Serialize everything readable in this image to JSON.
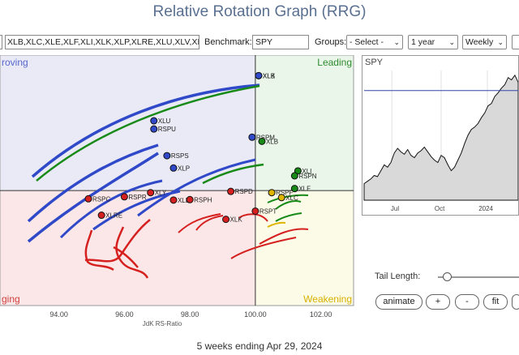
{
  "title": "Relative Rotation Graph (RRG)",
  "toolbar": {
    "symbols_value": "XLB,XLC,XLE,XLF,XLI,XLK,XLP,XLRE,XLU,XLV,XL",
    "benchmark_label": "Benchmark:",
    "benchmark_value": "SPY",
    "groups_label": "Groups:",
    "groups_value": "- Select -",
    "period_value": "1 year",
    "frequency_value": "Weekly"
  },
  "quadrants": {
    "improving": "roving",
    "leading": "Leading",
    "lagging": "ging",
    "weakening": "Weakening"
  },
  "x_axis_title": "JdK RS-Ratio",
  "chart_data": {
    "type": "scatter",
    "xlabel": "JdK RS-Ratio",
    "ylabel": "",
    "xlim": [
      92.2,
      103.0
    ],
    "ylim": [
      97.2,
      103.3
    ],
    "x_ticks": [
      "94.00",
      "96.00",
      "98.00",
      "100.00",
      "102.00"
    ],
    "x_tick_values": [
      94,
      96,
      98,
      100,
      102
    ],
    "center": [
      100,
      100
    ],
    "series": [
      {
        "name": "XLB",
        "color": "#2f49c9",
        "x": [
          100.1
        ],
        "y": [
          102.8
        ]
      },
      {
        "name": "XLK",
        "color": "#2f49c9",
        "x": [
          100.1
        ],
        "y": [
          102.8
        ]
      },
      {
        "name": "XLU",
        "color": "#2f49c9",
        "x": [
          96.9
        ],
        "y": [
          101.7
        ]
      },
      {
        "name": "RSPU",
        "color": "#2f49c9",
        "x": [
          96.9
        ],
        "y": [
          101.5
        ]
      },
      {
        "name": "RSPS",
        "color": "#2f49c9",
        "x": [
          97.3
        ],
        "y": [
          100.85
        ]
      },
      {
        "name": "XLP",
        "color": "#2f49c9",
        "x": [
          97.5
        ],
        "y": [
          100.55
        ]
      },
      {
        "name": "RSPM",
        "color": "#2f49c9",
        "x": [
          99.9
        ],
        "y": [
          101.3
        ]
      },
      {
        "name": "XLB",
        "color": "#178a17",
        "x": [
          100.2
        ],
        "y": [
          101.2
        ]
      },
      {
        "name": "XLI",
        "color": "#178a17",
        "x": [
          101.3
        ],
        "y": [
          100.48
        ]
      },
      {
        "name": "RSPN",
        "color": "#178a17",
        "x": [
          101.2
        ],
        "y": [
          100.36
        ]
      },
      {
        "name": "XLF",
        "color": "#178a17",
        "x": [
          101.2
        ],
        "y": [
          100.05
        ]
      },
      {
        "name": "RSPF",
        "color": "#e0b500",
        "x": [
          100.5
        ],
        "y": [
          99.95
        ]
      },
      {
        "name": "XLC",
        "color": "#e0b500",
        "x": [
          100.8
        ],
        "y": [
          99.83
        ]
      },
      {
        "name": "RSPD",
        "color": "#d62020",
        "x": [
          99.25
        ],
        "y": [
          99.98
        ]
      },
      {
        "name": "RSPT",
        "color": "#d62020",
        "x": [
          100.0
        ],
        "y": [
          99.5
        ]
      },
      {
        "name": "XLK",
        "color": "#d62020",
        "x": [
          99.1
        ],
        "y": [
          99.3
        ]
      },
      {
        "name": "XLY",
        "color": "#d62020",
        "x": [
          96.8
        ],
        "y": [
          99.95
        ]
      },
      {
        "name": "RSPR",
        "color": "#d62020",
        "x": [
          96.0
        ],
        "y": [
          99.85
        ]
      },
      {
        "name": "RSPC",
        "color": "#d62020",
        "x": [
          94.9
        ],
        "y": [
          99.8
        ]
      },
      {
        "name": "XLRE",
        "color": "#d62020",
        "x": [
          95.3
        ],
        "y": [
          99.4
        ]
      },
      {
        "name": "XLE",
        "color": "#d62020",
        "x": [
          97.5
        ],
        "y": [
          99.77
        ]
      },
      {
        "name": "RSPH",
        "color": "#d62020",
        "x": [
          98.0
        ],
        "y": [
          99.78
        ]
      }
    ]
  },
  "spy_panel": {
    "label": "SPY",
    "x_ticks": [
      "Jul",
      "Oct",
      "2024"
    ],
    "values": [
      44,
      46,
      48,
      51,
      50,
      55,
      60,
      58,
      62,
      70,
      74,
      71,
      69,
      73,
      68,
      66,
      70,
      72,
      75,
      71,
      67,
      64,
      62,
      68,
      66,
      60,
      55,
      58,
      64,
      70,
      78,
      85,
      90,
      92,
      95,
      100,
      104,
      110,
      112,
      118,
      121,
      125,
      128,
      134,
      132,
      136,
      130
    ],
    "reference": 123
  },
  "controls": {
    "tail_length_label": "Tail Length:",
    "tail_length": 0.05,
    "animate_label": "animate",
    "plus_label": "+",
    "minus_label": "-",
    "fit_label": "fit"
  },
  "footer": "5 weeks ending Apr 29, 2024"
}
